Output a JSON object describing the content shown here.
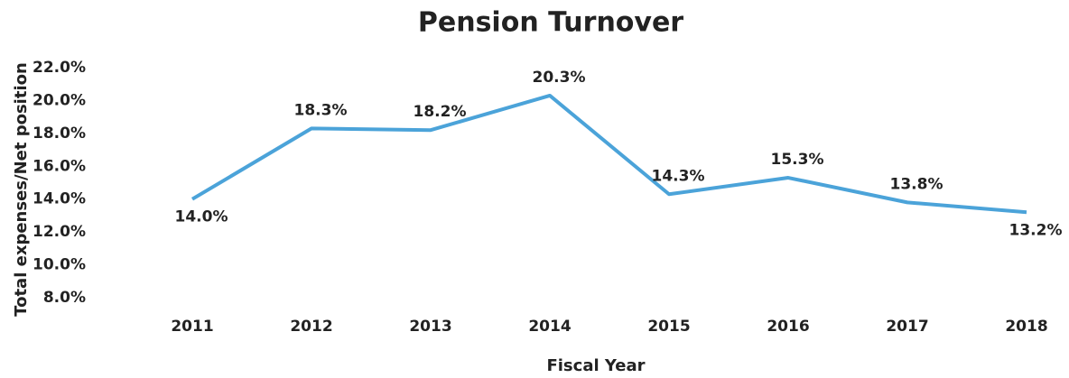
{
  "chart_data": {
    "type": "line",
    "title": "Pension Turnover",
    "x_label": "Fiscal Year",
    "y_label": "Total expenses/Net position",
    "categories": [
      "2011",
      "2012",
      "2013",
      "2014",
      "2015",
      "2016",
      "2017",
      "2018"
    ],
    "values": [
      14.0,
      18.3,
      18.2,
      20.3,
      14.3,
      15.3,
      13.8,
      13.2
    ],
    "value_labels": [
      "14.0%",
      "18.3%",
      "18.2%",
      "20.3%",
      "14.3%",
      "15.3%",
      "13.8%",
      "13.2%"
    ],
    "color": "#4ba3d9",
    "ylim": [
      8,
      22
    ],
    "yticks": [
      {
        "value": 8,
        "label": "8.0%"
      },
      {
        "value": 10,
        "label": "10.0%"
      },
      {
        "value": 12,
        "label": "12.0%"
      },
      {
        "value": 14,
        "label": "14.0%"
      },
      {
        "value": 16,
        "label": "16.0%"
      },
      {
        "value": 18,
        "label": "18.0%"
      },
      {
        "value": 20,
        "label": "20.0%"
      },
      {
        "value": 22,
        "label": "22.0%"
      }
    ],
    "grid": false
  }
}
